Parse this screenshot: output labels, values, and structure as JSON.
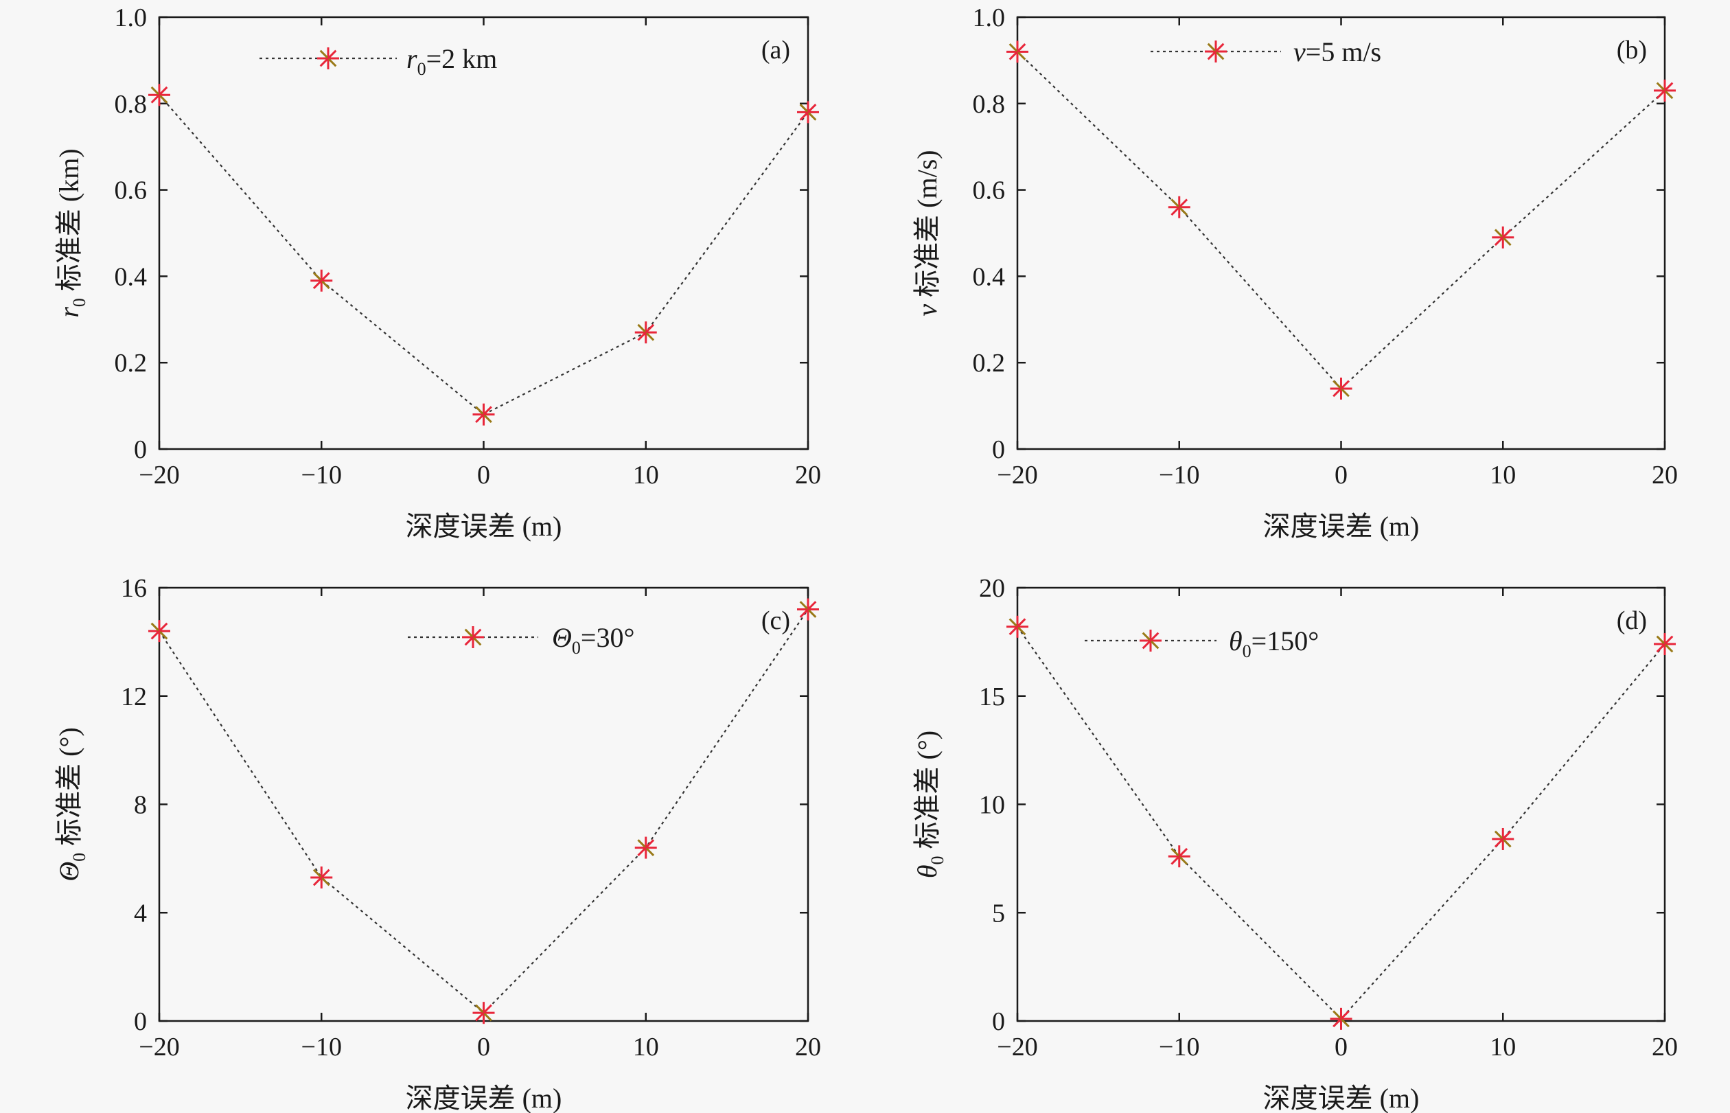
{
  "chart_data": [
    {
      "type": "line",
      "panel_tag": "(a)",
      "xlabel": "深度误差 (m)",
      "ylabel_var": "r",
      "ylabel_sub": "0",
      "ylabel_rest": " 标准差 (km)",
      "legend": {
        "var": "r",
        "sub": "0",
        "rest": "=2 km",
        "position": "top-left"
      },
      "xlim": [
        -20,
        20
      ],
      "ylim": [
        0,
        1.0
      ],
      "xticks": [
        -20,
        -10,
        0,
        10,
        20
      ],
      "xtick_labels": [
        "−20",
        "−10",
        "0",
        "10",
        "20"
      ],
      "yticks": [
        0,
        0.2,
        0.4,
        0.6,
        0.8,
        1.0
      ],
      "ytick_labels": [
        "0",
        "0.2",
        "0.4",
        "0.6",
        "0.8",
        "1.0"
      ],
      "grid": false,
      "series": [
        {
          "x": [
            -20,
            -10,
            0,
            10,
            20
          ],
          "y": [
            0.82,
            0.39,
            0.08,
            0.27,
            0.78
          ]
        }
      ]
    },
    {
      "type": "line",
      "panel_tag": "(b)",
      "xlabel": "深度误差 (m)",
      "ylabel_var": "v",
      "ylabel_sub": "",
      "ylabel_rest": " 标准差 (m/s)",
      "legend": {
        "var": "v",
        "sub": "",
        "rest": "=5 m/s",
        "position": "top-center"
      },
      "xlim": [
        -20,
        20
      ],
      "ylim": [
        0,
        1.0
      ],
      "xticks": [
        -20,
        -10,
        0,
        10,
        20
      ],
      "xtick_labels": [
        "−20",
        "−10",
        "0",
        "10",
        "20"
      ],
      "yticks": [
        0,
        0.2,
        0.4,
        0.6,
        0.8,
        1.0
      ],
      "ytick_labels": [
        "0",
        "0.2",
        "0.4",
        "0.6",
        "0.8",
        "1.0"
      ],
      "grid": false,
      "series": [
        {
          "x": [
            -20,
            -10,
            0,
            10,
            20
          ],
          "y": [
            0.92,
            0.56,
            0.14,
            0.49,
            0.83
          ]
        }
      ]
    },
    {
      "type": "line",
      "panel_tag": "(c)",
      "xlabel": "深度误差 (m)",
      "ylabel_var": "Θ",
      "ylabel_sub": "0",
      "ylabel_rest": " 标准差 (°)",
      "legend": {
        "var": "Θ",
        "sub": "0",
        "rest": "=30°",
        "position": "top-center"
      },
      "xlim": [
        -20,
        20
      ],
      "ylim": [
        0,
        16
      ],
      "xticks": [
        -20,
        -10,
        0,
        10,
        20
      ],
      "xtick_labels": [
        "−20",
        "−10",
        "0",
        "10",
        "20"
      ],
      "yticks": [
        0,
        4,
        8,
        12,
        16
      ],
      "ytick_labels": [
        "0",
        "4",
        "8",
        "12",
        "16"
      ],
      "grid": false,
      "series": [
        {
          "x": [
            -20,
            -10,
            0,
            10,
            20
          ],
          "y": [
            14.4,
            5.3,
            0.3,
            6.4,
            15.2
          ]
        }
      ]
    },
    {
      "type": "line",
      "panel_tag": "(d)",
      "xlabel": "深度误差 (m)",
      "ylabel_var": "θ",
      "ylabel_sub": "0",
      "ylabel_rest": " 标准差 (°)",
      "legend": {
        "var": "θ",
        "sub": "0",
        "rest": "=150°",
        "position": "top-left"
      },
      "xlim": [
        -20,
        20
      ],
      "ylim": [
        0,
        20
      ],
      "xticks": [
        -20,
        -10,
        0,
        10,
        20
      ],
      "xtick_labels": [
        "−20",
        "−10",
        "0",
        "10",
        "20"
      ],
      "yticks": [
        0,
        5,
        10,
        15,
        20
      ],
      "ytick_labels": [
        "0",
        "5",
        "10",
        "15",
        "20"
      ],
      "grid": false,
      "series": [
        {
          "x": [
            -20,
            -10,
            0,
            10,
            20
          ],
          "y": [
            18.2,
            7.6,
            0.1,
            8.4,
            17.4
          ]
        }
      ]
    }
  ],
  "colors": {
    "marker": "#e8263a",
    "marker_accent": "#9a7a18",
    "line": "#333333",
    "axis": "#1a1a1a"
  }
}
